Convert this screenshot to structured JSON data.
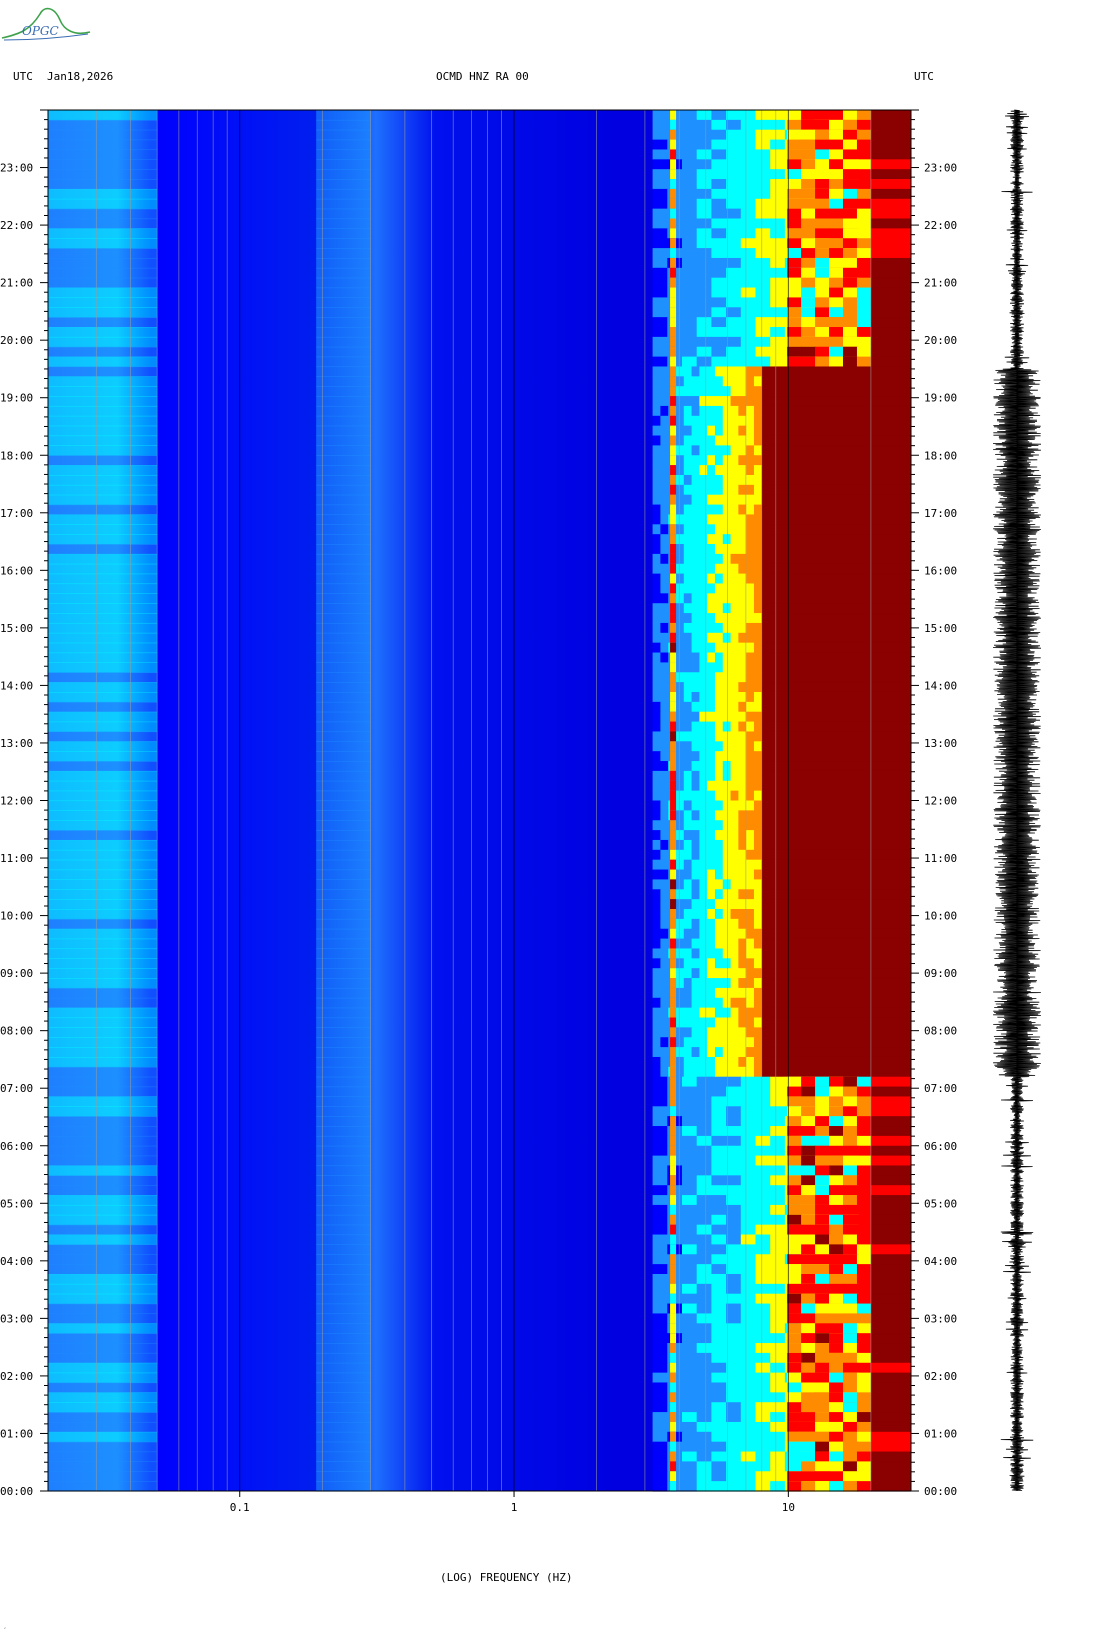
{
  "header": {
    "left_timezone": "UTC",
    "date": "Jan18,2026",
    "station": "OCMD HNZ RA 00",
    "right_timezone": "UTC"
  },
  "logo": {
    "text": "OPGC",
    "color": "#3a6db3"
  },
  "corner_mark": "¸",
  "chart_data": {
    "type": "heatmap",
    "title": "OCMD HNZ RA 00",
    "xlabel": "(LOG) FREQUENCY (HZ)",
    "x_scale": "log",
    "x_range": [
      0.02,
      28
    ],
    "x_ticks": [
      {
        "value": 0.1,
        "label": "0.1"
      },
      {
        "value": 1,
        "label": "1"
      },
      {
        "value": 10,
        "label": "10"
      }
    ],
    "y_range_hours": [
      0,
      24
    ],
    "y_ticks": [
      "00:00",
      "01:00",
      "02:00",
      "03:00",
      "04:00",
      "05:00",
      "06:00",
      "07:00",
      "08:00",
      "09:00",
      "10:00",
      "11:00",
      "12:00",
      "13:00",
      "14:00",
      "15:00",
      "16:00",
      "17:00",
      "18:00",
      "19:00",
      "20:00",
      "21:00",
      "22:00",
      "23:00"
    ],
    "colormap": [
      "#00008b",
      "#0000ff",
      "#1e90ff",
      "#00ffff",
      "#ffff00",
      "#ff8c00",
      "#ff0000",
      "#8b0000"
    ],
    "features": {
      "tonal_line_hz": 3.8,
      "high_energy_onset_hz": {
        "night": 18,
        "daytime": 8
      },
      "daytime_hours": [
        7.2,
        19.5
      ]
    },
    "trace": {
      "label": "waveform",
      "color": "#000000"
    }
  }
}
